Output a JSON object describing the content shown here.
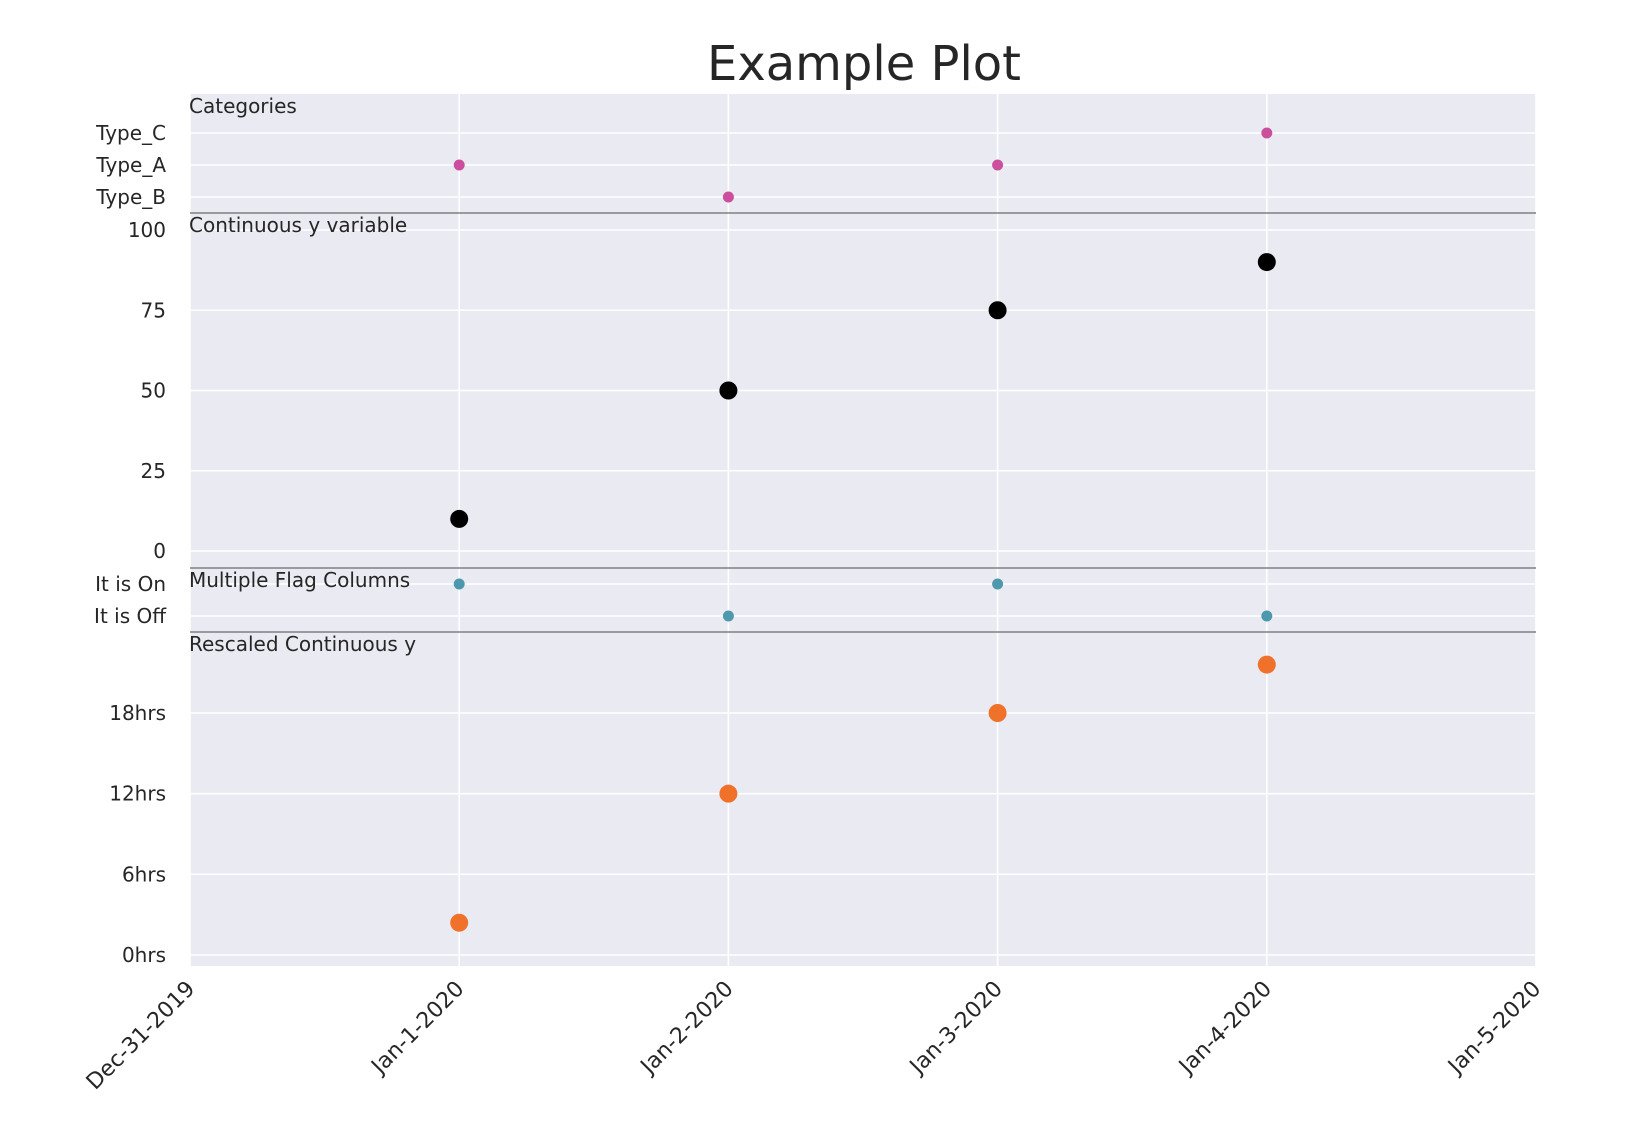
{
  "chart_data": {
    "type": "scatter",
    "title": "Example Plot",
    "xlabel": "",
    "ylabel": "",
    "grid": true,
    "colors": {
      "background": "#eaeaf2",
      "grid": "#ffffff",
      "separator": "#808080",
      "categories": "#cc4f9e",
      "continuous": "#000000",
      "flags": "#4d98ad",
      "rescaled": "#f0712a"
    },
    "x_axis": {
      "range": [
        "Dec-31-2019",
        "Jan-5-2020"
      ],
      "ticks": [
        "Dec-31-2019",
        "Jan-1-2020",
        "Jan-2-2020",
        "Jan-3-2020",
        "Jan-4-2020",
        "Jan-5-2020"
      ]
    },
    "panels": [
      {
        "label": "Categories",
        "kind": "categorical",
        "ticks": [
          "Type_C",
          "Type_A",
          "Type_B"
        ],
        "points": [
          {
            "x": "Jan-1-2020",
            "y": "Type_A"
          },
          {
            "x": "Jan-2-2020",
            "y": "Type_B"
          },
          {
            "x": "Jan-3-2020",
            "y": "Type_A"
          },
          {
            "x": "Jan-4-2020",
            "y": "Type_C"
          }
        ]
      },
      {
        "label": "Continuous y variable",
        "kind": "numeric",
        "ylim": [
          -5,
          105
        ],
        "ticks": [
          {
            "value": 100,
            "label": "100"
          },
          {
            "value": 75,
            "label": "75"
          },
          {
            "value": 50,
            "label": "50"
          },
          {
            "value": 25,
            "label": "25"
          },
          {
            "value": 0,
            "label": "0"
          }
        ],
        "points": [
          {
            "x": "Jan-1-2020",
            "y": 10
          },
          {
            "x": "Jan-2-2020",
            "y": 50
          },
          {
            "x": "Jan-3-2020",
            "y": 75
          },
          {
            "x": "Jan-4-2020",
            "y": 90
          }
        ]
      },
      {
        "label": "Multiple Flag Columns",
        "kind": "categorical",
        "ticks": [
          "It is On",
          "It is Off"
        ],
        "points": [
          {
            "x": "Jan-1-2020",
            "y": "It is On"
          },
          {
            "x": "Jan-2-2020",
            "y": "It is Off"
          },
          {
            "x": "Jan-3-2020",
            "y": "It is On"
          },
          {
            "x": "Jan-4-2020",
            "y": "It is Off"
          }
        ]
      },
      {
        "label": "Rescaled Continuous y",
        "kind": "numeric",
        "ylim": [
          -1,
          26
        ],
        "ticks": [
          {
            "value": 18,
            "label": "18hrs"
          },
          {
            "value": 12,
            "label": "12hrs"
          },
          {
            "value": 6,
            "label": "6hrs"
          },
          {
            "value": 0,
            "label": "0hrs"
          }
        ],
        "points": [
          {
            "x": "Jan-1-2020",
            "y": 2.4
          },
          {
            "x": "Jan-2-2020",
            "y": 12
          },
          {
            "x": "Jan-3-2020",
            "y": 18
          },
          {
            "x": "Jan-4-2020",
            "y": 21.6
          }
        ]
      }
    ]
  }
}
